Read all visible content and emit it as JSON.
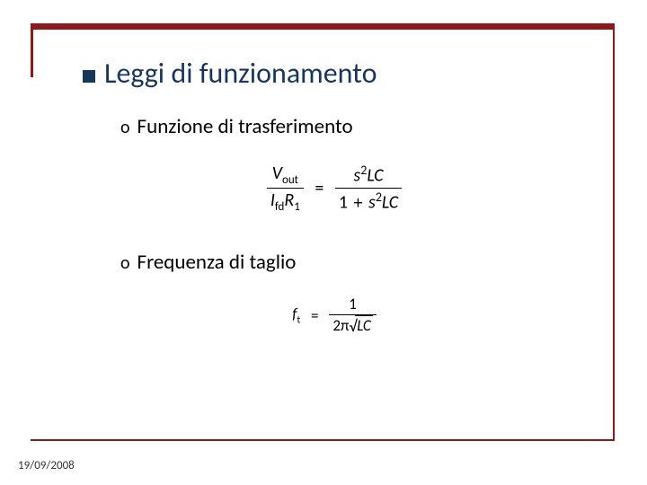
{
  "heading": "Leggi di funzionamento",
  "items": {
    "transfer": {
      "label": "Funzione di trasferimento",
      "formula": {
        "lhs_num": {
          "var": "V",
          "sub": "out"
        },
        "lhs_den": {
          "var1": "I",
          "sub1": "fd",
          "var2": "R",
          "sub2": "1"
        },
        "rhs_num": {
          "var1": "s",
          "sup": "2",
          "var2": "LC"
        },
        "rhs_den": {
          "one": "1",
          "plus": "+",
          "var1": "s",
          "sup": "2",
          "var2": "LC"
        }
      }
    },
    "cutoff": {
      "label": "Frequenza di taglio",
      "formula": {
        "lhs": {
          "var": "f",
          "sub": "t"
        },
        "rhs_num": "1",
        "rhs_den": {
          "twopi": "2π",
          "sqrt_arg": "LC"
        }
      }
    }
  },
  "footer": {
    "date": "19/09/2008"
  },
  "colors": {
    "accent": "#8b1a1a",
    "heading": "#17365d",
    "text": "#000000",
    "background": "#ffffff"
  }
}
